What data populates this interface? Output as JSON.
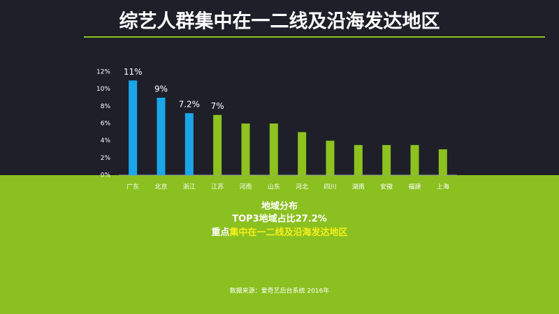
{
  "header": {
    "title": "综艺人群集中在一二线及沿海发达地区"
  },
  "chart_data": {
    "type": "bar",
    "categories": [
      "广东",
      "北京",
      "浙江",
      "江苏",
      "河南",
      "山东",
      "河北",
      "四川",
      "湖南",
      "安徽",
      "福建",
      "上海"
    ],
    "values": [
      11,
      9,
      7.2,
      7,
      6,
      6,
      5,
      4,
      3.5,
      3.5,
      3.5,
      3
    ],
    "value_labels": [
      "11%",
      "9%",
      "7.2%",
      "7%",
      null,
      null,
      null,
      null,
      null,
      null,
      null,
      null
    ],
    "colors": [
      "#1ba6ea",
      "#1ba6ea",
      "#1ba6ea",
      "#8dc21f",
      "#8dc21f",
      "#8dc21f",
      "#8dc21f",
      "#8dc21f",
      "#8dc21f",
      "#8dc21f",
      "#8dc21f",
      "#8dc21f"
    ],
    "ylim": [
      0,
      12
    ],
    "yticks": [
      {
        "value": 0,
        "label": "0%"
      },
      {
        "value": 2,
        "label": "2%"
      },
      {
        "value": 4,
        "label": "4%"
      },
      {
        "value": 6,
        "label": "6%"
      },
      {
        "value": 8,
        "label": "8%"
      },
      {
        "value": 10,
        "label": "10%"
      },
      {
        "value": 12,
        "label": "12%"
      }
    ]
  },
  "summary": {
    "lines": [
      "地域分布",
      "TOP3地域占比27.2%"
    ],
    "prefix": "重点",
    "emphasis": "集中在一二线及沿海发达地区"
  },
  "source": "数据来源：爱奇艺后台系统 2016年"
}
